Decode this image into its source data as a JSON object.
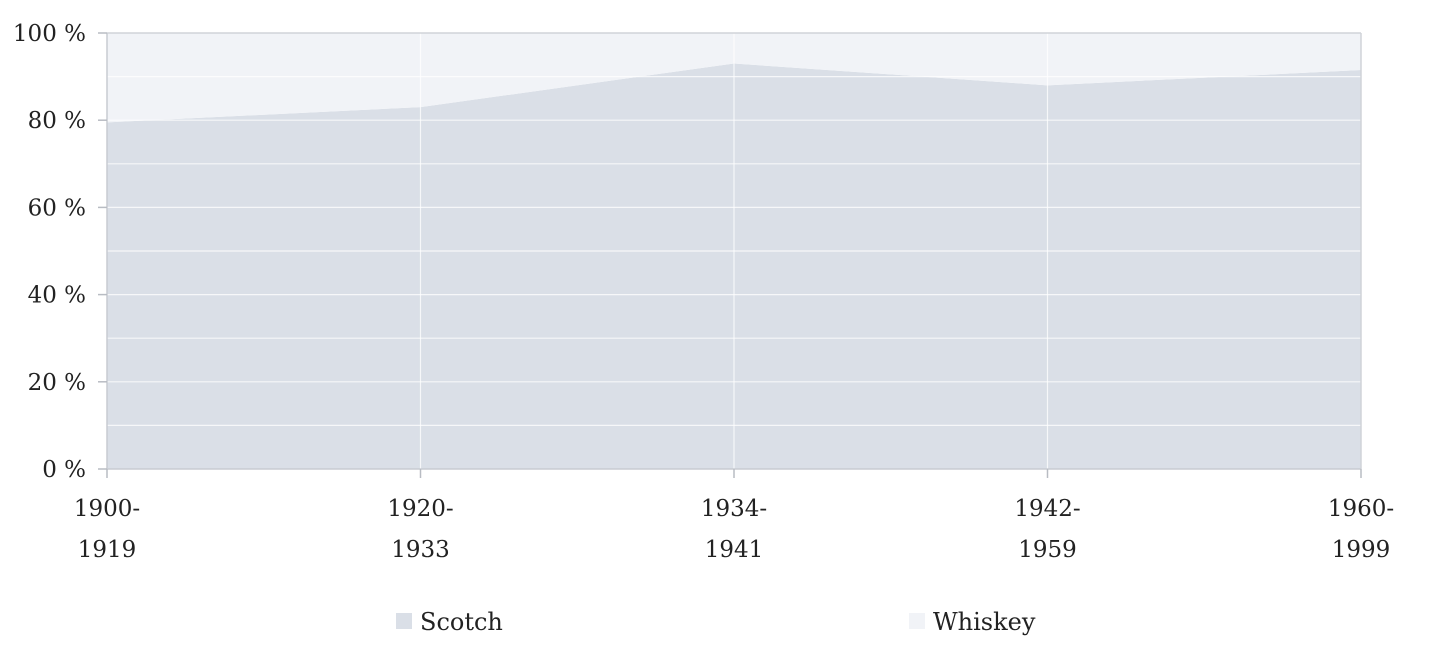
{
  "chart_data": {
    "type": "area",
    "stacked": true,
    "normalized": true,
    "categories": [
      [
        "1900-",
        "1919"
      ],
      [
        "1920-",
        "1933"
      ],
      [
        "1934-",
        "1941"
      ],
      [
        "1942-",
        "1959"
      ],
      [
        "1960-",
        "1999"
      ]
    ],
    "series": [
      {
        "name": "Scotch",
        "values": [
          79.5,
          83,
          93,
          88,
          91.5
        ],
        "color": "#dadfe7"
      },
      {
        "name": "Whiskey",
        "values": [
          20.5,
          17,
          7,
          12,
          8.5
        ],
        "color": "#f1f3f7"
      }
    ],
    "ylim": [
      0,
      100
    ],
    "yticks": [
      0,
      20,
      40,
      60,
      80,
      100
    ],
    "ytick_labels": [
      "0 %",
      "20 %",
      "40 %",
      "60 %",
      "80 %",
      "100 %"
    ],
    "grid": true,
    "legend_position": "bottom"
  }
}
